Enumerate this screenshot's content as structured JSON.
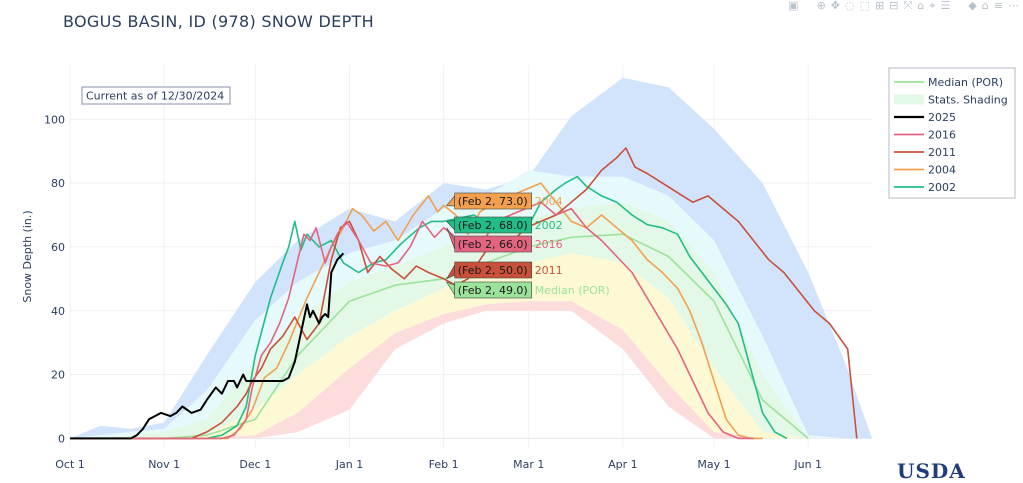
{
  "title": "BOGUS BASIN, ID (978) SNOW DEPTH",
  "annotation": "Current as of 12/30/2024",
  "logo_text": "USDA",
  "modebar": [
    "camera-icon",
    "zoom-icon",
    "pan-icon",
    "lasso-icon",
    "select-icon",
    "zoom-in-icon",
    "zoom-out-icon",
    "autoscale-icon",
    "reset-axes-icon",
    "spike-icon",
    "compare-icon",
    "hover-closest-icon",
    "home-icon",
    "toggle-spikes-icon",
    "menu-icon"
  ],
  "chart_data": {
    "type": "line",
    "ylabel": "Snow Depth (in.)",
    "xlabel": "",
    "ylim": [
      -3,
      117
    ],
    "yticks": [
      0,
      20,
      40,
      60,
      80,
      100
    ],
    "x_range_days": [
      0,
      264
    ],
    "xticks": [
      {
        "label": "Oct  1",
        "day": 0
      },
      {
        "label": "Nov  1",
        "day": 31
      },
      {
        "label": "Dec  1",
        "day": 61
      },
      {
        "label": "Jan  1",
        "day": 92
      },
      {
        "label": "Feb  1",
        "day": 123
      },
      {
        "label": "Mar  1",
        "day": 151
      },
      {
        "label": "Apr  1",
        "day": 182
      },
      {
        "label": "May  1",
        "day": 212
      },
      {
        "label": "Jun  1",
        "day": 243
      }
    ],
    "grid": true,
    "legend_position": "top-right",
    "legend": [
      {
        "name": "Median (POR)",
        "color": "#9be39a",
        "kind": "line"
      },
      {
        "name": "Stats. Shading",
        "color": "#e3f8e6",
        "kind": "box"
      },
      {
        "name": "2025",
        "color": "#000000",
        "kind": "line"
      },
      {
        "name": "2016",
        "color": "#e3647f",
        "kind": "line"
      },
      {
        "name": "2011",
        "color": "#c9503a",
        "kind": "line"
      },
      {
        "name": "2004",
        "color": "#f2a04e",
        "kind": "line"
      },
      {
        "name": "2002",
        "color": "#22bd86",
        "kind": "line"
      }
    ],
    "shading": {
      "x": [
        0,
        10,
        20,
        31,
        45,
        61,
        75,
        92,
        107,
        123,
        137,
        151,
        165,
        182,
        197,
        212,
        228,
        243,
        255,
        264
      ],
      "max": [
        0,
        4,
        3,
        5,
        26,
        49,
        62,
        72,
        68,
        80,
        78,
        82,
        101,
        113,
        110,
        97,
        80,
        52,
        24,
        0
      ],
      "p90": [
        0,
        1,
        2,
        3,
        15,
        37,
        49,
        58,
        62,
        72,
        76,
        84,
        82,
        82,
        76,
        62,
        32,
        1,
        0,
        0
      ],
      "p70": [
        0,
        0,
        1,
        2,
        6,
        24,
        38,
        49,
        54,
        60,
        66,
        69,
        72,
        74,
        68,
        52,
        20,
        0,
        0,
        0
      ],
      "p50": [
        0,
        0,
        0,
        1,
        3,
        15,
        29,
        40,
        46,
        52,
        59,
        61,
        65,
        64,
        56,
        38,
        8,
        0,
        0,
        0
      ],
      "p30": [
        0,
        0,
        0,
        0,
        1,
        9,
        20,
        32,
        40,
        47,
        53,
        55,
        58,
        55,
        44,
        22,
        2,
        0,
        0,
        0
      ],
      "p10": [
        0,
        0,
        0,
        0,
        0,
        1,
        8,
        22,
        33,
        39,
        42,
        43,
        43,
        34,
        17,
        2,
        0,
        0,
        0,
        0
      ],
      "min": [
        0,
        0,
        0,
        0,
        0,
        0,
        2,
        9,
        28,
        36,
        40,
        40,
        40,
        28,
        10,
        0,
        0,
        0,
        0,
        0
      ],
      "colors": {
        "max_p90": "#d2e4fb",
        "p90_p70": "#e6f9fb",
        "p70_p30": "#e3f8e6",
        "p30_p10": "#fdf9d4",
        "p10_min": "#fddcdc"
      }
    },
    "series": [
      {
        "name": "Median (POR)",
        "color": "#9be39a",
        "width": 1.6,
        "x": [
          0,
          31,
          45,
          61,
          75,
          92,
          107,
          123,
          137,
          151,
          165,
          182,
          197,
          212,
          228,
          243
        ],
        "y": [
          0,
          0,
          1,
          6,
          26,
          43,
          48,
          50,
          55,
          60,
          63,
          64,
          57,
          43,
          12,
          0
        ]
      },
      {
        "name": "2002",
        "color": "#22bd86",
        "width": 1.6,
        "x": [
          0,
          45,
          50,
          55,
          58,
          61,
          66,
          70,
          72,
          74,
          76,
          78,
          82,
          86,
          90,
          95,
          100,
          104,
          109,
          115,
          119,
          123,
          128,
          133,
          138,
          142,
          146,
          150,
          155,
          160,
          163,
          167,
          170,
          175,
          180,
          185,
          190,
          195,
          200,
          204,
          208,
          212,
          216,
          220,
          224,
          228,
          232,
          236
        ],
        "y": [
          0,
          0,
          1,
          4,
          10,
          26,
          44,
          55,
          60,
          68,
          59,
          64,
          60,
          62,
          55,
          52,
          55,
          56,
          61,
          66,
          68,
          68,
          69,
          70,
          67,
          66,
          66,
          65,
          74,
          78,
          80,
          82,
          79,
          76,
          74,
          70,
          67,
          66,
          64,
          57,
          52,
          47,
          42,
          36,
          22,
          8,
          2,
          0
        ]
      },
      {
        "name": "2004",
        "color": "#f2a04e",
        "width": 1.6,
        "x": [
          0,
          52,
          56,
          60,
          64,
          68,
          72,
          75,
          78,
          82,
          86,
          90,
          93,
          96,
          100,
          104,
          108,
          113,
          118,
          121,
          123,
          127,
          131,
          135,
          140,
          145,
          150,
          155,
          160,
          165,
          170,
          175,
          180,
          185,
          190,
          195,
          200,
          204,
          208,
          212,
          216,
          220,
          224,
          228
        ],
        "y": [
          0,
          0,
          3,
          9,
          19,
          22,
          30,
          37,
          44,
          52,
          60,
          66,
          72,
          70,
          65,
          68,
          62,
          70,
          76,
          71,
          73,
          70,
          64,
          71,
          74,
          76,
          78,
          80,
          74,
          68,
          66,
          70,
          66,
          62,
          56,
          52,
          47,
          40,
          30,
          18,
          6,
          1,
          0,
          0
        ]
      },
      {
        "name": "2011",
        "color": "#c9503a",
        "width": 1.6,
        "x": [
          0,
          40,
          45,
          50,
          55,
          58,
          60,
          63,
          66,
          70,
          74,
          78,
          82,
          86,
          89,
          92,
          95,
          98,
          102,
          106,
          110,
          114,
          118,
          123,
          127,
          131,
          135,
          140,
          145,
          150,
          155,
          160,
          165,
          170,
          175,
          180,
          183,
          186,
          190,
          195,
          200,
          205,
          210,
          215,
          220,
          225,
          230,
          235,
          240,
          245,
          250,
          253,
          256,
          259
        ],
        "y": [
          0,
          0,
          2,
          5,
          10,
          14,
          18,
          22,
          28,
          32,
          38,
          31,
          36,
          56,
          66,
          68,
          62,
          52,
          57,
          53,
          50,
          54,
          52,
          50,
          48,
          50,
          56,
          63,
          61,
          66,
          68,
          70,
          74,
          78,
          84,
          88,
          91,
          85,
          83,
          80,
          77,
          74,
          76,
          72,
          68,
          62,
          56,
          52,
          46,
          40,
          36,
          32,
          28,
          0
        ]
      },
      {
        "name": "2016",
        "color": "#e3647f",
        "width": 1.6,
        "x": [
          0,
          50,
          54,
          58,
          60,
          63,
          66,
          69,
          72,
          75,
          77,
          79,
          81,
          84,
          86,
          88,
          91,
          95,
          99,
          104,
          108,
          112,
          116,
          120,
          123,
          127,
          131,
          135,
          140,
          145,
          150,
          155,
          160,
          165,
          170,
          175,
          180,
          185,
          190,
          195,
          200,
          205,
          210,
          215,
          220,
          225
        ],
        "y": [
          0,
          0,
          1,
          6,
          16,
          26,
          30,
          36,
          44,
          56,
          64,
          62,
          66,
          55,
          60,
          64,
          68,
          62,
          55,
          54,
          55,
          60,
          68,
          63,
          66,
          63,
          62,
          60,
          68,
          70,
          72,
          74,
          70,
          72,
          66,
          62,
          57,
          52,
          44,
          36,
          28,
          18,
          8,
          2,
          0,
          0
        ]
      },
      {
        "name": "2025",
        "color": "#000000",
        "width": 2,
        "x": [
          0,
          20,
          22,
          24,
          26,
          30,
          33,
          35,
          37,
          40,
          43,
          45,
          48,
          50,
          52,
          54,
          55,
          56,
          57,
          58,
          60,
          62,
          63,
          64,
          66,
          68,
          70,
          72,
          74,
          76,
          78,
          79,
          80,
          81,
          82,
          83,
          84,
          85,
          86,
          87,
          88,
          89,
          90
        ],
        "y": [
          0,
          0,
          1,
          3,
          6,
          8,
          7,
          8,
          10,
          8,
          9,
          12,
          16,
          14,
          18,
          18,
          16,
          18,
          20,
          18,
          18,
          18,
          18,
          18,
          18,
          18,
          18,
          19,
          24,
          33,
          42,
          38,
          40,
          38,
          36,
          38,
          39,
          38,
          52,
          54,
          56,
          57,
          58
        ]
      }
    ],
    "hover_labels": [
      {
        "text": "(Feb  2, 73.0)",
        "series_label": "2004",
        "value": 73.0,
        "bg": "#f2a04e",
        "fg": "#1a1a1a",
        "name_color": "#f2a04e"
      },
      {
        "text": "(Feb  2, 68.0)",
        "series_label": "2002",
        "value": 68.0,
        "bg": "#22bd86",
        "fg": "#1a1a1a",
        "name_color": "#22bd86"
      },
      {
        "text": "(Feb  2, 66.0)",
        "series_label": "2016",
        "value": 66.0,
        "bg": "#e3647f",
        "fg": "#1a1a1a",
        "name_color": "#e3647f"
      },
      {
        "text": "(Feb  2, 50.0)",
        "series_label": "2011",
        "value": 50.0,
        "bg": "#c9503a",
        "fg": "#1a1a1a",
        "name_color": "#c9503a"
      },
      {
        "text": "(Feb  2, 49.0)",
        "series_label": "Median (POR)",
        "value": 49.0,
        "bg": "#9be39a",
        "fg": "#1a1a1a",
        "name_color": "#9be39a"
      }
    ],
    "hover_day": 124
  }
}
